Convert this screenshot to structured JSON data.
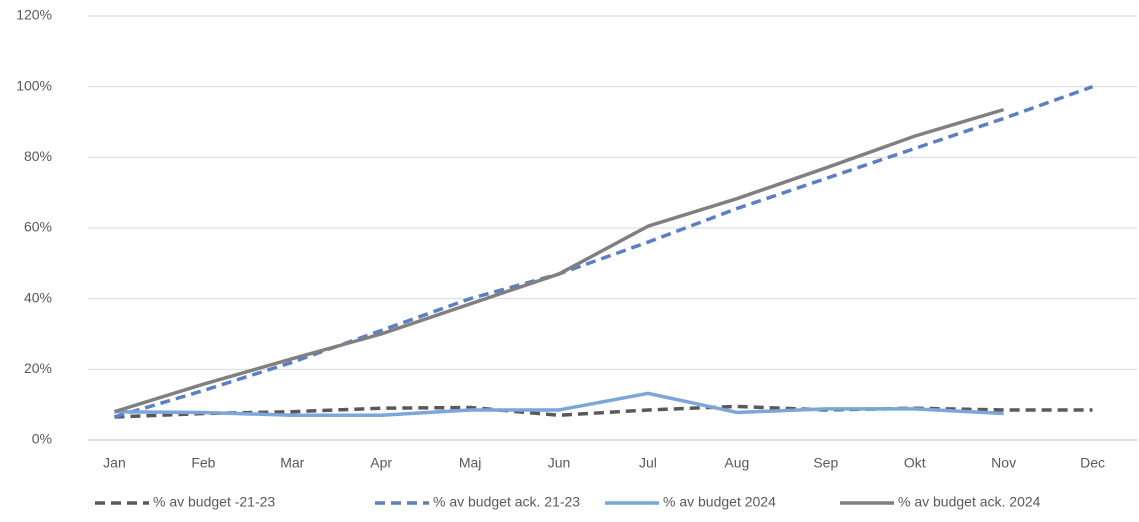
{
  "chart_data": {
    "type": "line",
    "categories": [
      "Jan",
      "Feb",
      "Mar",
      "Apr",
      "Maj",
      "Jun",
      "Jul",
      "Aug",
      "Sep",
      "Okt",
      "Nov",
      "Dec"
    ],
    "series": [
      {
        "name": "% av budget -21-23",
        "color": "#595959",
        "dash": true,
        "values": [
          6.5,
          7.5,
          8,
          9,
          9.2,
          7,
          8.5,
          9.5,
          8.5,
          9,
          8.5,
          8.5
        ]
      },
      {
        "name": "% av budget ack. 21-23",
        "color": "#5b7fc7",
        "dash": true,
        "values": [
          6.5,
          14,
          22,
          31,
          40,
          47,
          56,
          65.5,
          74,
          82.5,
          91,
          100
        ]
      },
      {
        "name": "% av budget 2024",
        "color": "#7aa6d8",
        "dash": false,
        "values": [
          8,
          7.8,
          7,
          7,
          8.5,
          8.5,
          13.2,
          7.8,
          8.8,
          8.8,
          7.5,
          null
        ]
      },
      {
        "name": "% av budget ack. 2024",
        "color": "#808080",
        "dash": false,
        "values": [
          8,
          15.8,
          23,
          30,
          38.5,
          47,
          60.5,
          68.3,
          77,
          86,
          93.5,
          null
        ]
      }
    ],
    "ylim": [
      0,
      120
    ],
    "yticks": [
      {
        "value": 0,
        "label": "0%"
      },
      {
        "value": 20,
        "label": "20%"
      },
      {
        "value": 40,
        "label": "40%"
      },
      {
        "value": 60,
        "label": "60%"
      },
      {
        "value": 80,
        "label": "80%"
      },
      {
        "value": 100,
        "label": "100%"
      },
      {
        "value": 120,
        "label": "120%"
      }
    ],
    "grid": true,
    "legend": "bottom"
  }
}
